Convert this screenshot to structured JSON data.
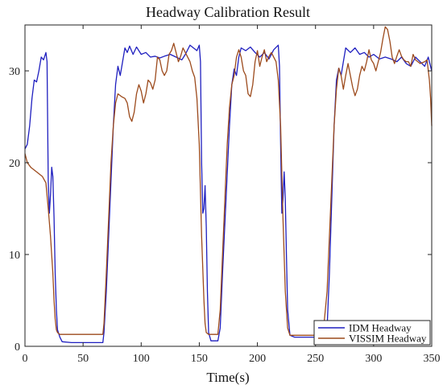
{
  "chart_data": {
    "type": "line",
    "title": "Headway Calibration Result",
    "xlabel": "Time(s)",
    "ylabel": "",
    "xlim": [
      0,
      350
    ],
    "ylim": [
      0,
      35
    ],
    "xticks": [
      0,
      50,
      100,
      150,
      200,
      250,
      300,
      350
    ],
    "yticks": [
      0,
      10,
      20,
      30
    ],
    "grid": false,
    "legend_position": "bottom-right",
    "series": [
      {
        "name": "IDM Headway",
        "color": "#1f1fbf",
        "points": [
          [
            0,
            21.5
          ],
          [
            2,
            22
          ],
          [
            4,
            24
          ],
          [
            6,
            27
          ],
          [
            8,
            29
          ],
          [
            10,
            28.8
          ],
          [
            12,
            30
          ],
          [
            14,
            31.5
          ],
          [
            16,
            31.2
          ],
          [
            18,
            32
          ],
          [
            19,
            31
          ],
          [
            20,
            18
          ],
          [
            21,
            14.5
          ],
          [
            22,
            16.5
          ],
          [
            23,
            19.5
          ],
          [
            24,
            18.5
          ],
          [
            25,
            14
          ],
          [
            26,
            8
          ],
          [
            27,
            4
          ],
          [
            28,
            1.8
          ],
          [
            30,
            1
          ],
          [
            32,
            0.5
          ],
          [
            40,
            0.4
          ],
          [
            50,
            0.4
          ],
          [
            60,
            0.4
          ],
          [
            67,
            0.4
          ],
          [
            68,
            1.5
          ],
          [
            70,
            6
          ],
          [
            72,
            12
          ],
          [
            74,
            18
          ],
          [
            76,
            24
          ],
          [
            78,
            28.5
          ],
          [
            80,
            30.5
          ],
          [
            82,
            29.5
          ],
          [
            84,
            31
          ],
          [
            86,
            32.5
          ],
          [
            88,
            32
          ],
          [
            90,
            32.7
          ],
          [
            93,
            31.8
          ],
          [
            96,
            32.6
          ],
          [
            100,
            31.8
          ],
          [
            104,
            32
          ],
          [
            108,
            31.5
          ],
          [
            112,
            31.6
          ],
          [
            116,
            31.4
          ],
          [
            120,
            31.6
          ],
          [
            125,
            31.8
          ],
          [
            130,
            31.5
          ],
          [
            135,
            31.2
          ],
          [
            138,
            31.8
          ],
          [
            142,
            32.8
          ],
          [
            145,
            32.5
          ],
          [
            148,
            32.2
          ],
          [
            150,
            32.8
          ],
          [
            151,
            31
          ],
          [
            152,
            20
          ],
          [
            153,
            14.5
          ],
          [
            154,
            15
          ],
          [
            155,
            17.5
          ],
          [
            156,
            13
          ],
          [
            157,
            6
          ],
          [
            158,
            1.5
          ],
          [
            160,
            0.6
          ],
          [
            164,
            0.6
          ],
          [
            166,
            0.6
          ],
          [
            168,
            2
          ],
          [
            170,
            8
          ],
          [
            173,
            16
          ],
          [
            176,
            24
          ],
          [
            178,
            28.5
          ],
          [
            180,
            30.2
          ],
          [
            182,
            29.5
          ],
          [
            184,
            31.5
          ],
          [
            186,
            32.5
          ],
          [
            190,
            32.2
          ],
          [
            194,
            32.6
          ],
          [
            198,
            32
          ],
          [
            202,
            31.5
          ],
          [
            206,
            32
          ],
          [
            210,
            31.3
          ],
          [
            214,
            32.3
          ],
          [
            218,
            32.8
          ],
          [
            219,
            30.5
          ],
          [
            220,
            22
          ],
          [
            221,
            14.5
          ],
          [
            222,
            16
          ],
          [
            223,
            19
          ],
          [
            224,
            16
          ],
          [
            225,
            10
          ],
          [
            226,
            4
          ],
          [
            228,
            1.2
          ],
          [
            232,
            1
          ],
          [
            240,
            1
          ],
          [
            250,
            1
          ],
          [
            258,
            1
          ],
          [
            260,
            2
          ],
          [
            262,
            8
          ],
          [
            264,
            16
          ],
          [
            266,
            24
          ],
          [
            268,
            29
          ],
          [
            270,
            30.3
          ],
          [
            272,
            29.5
          ],
          [
            274,
            31
          ],
          [
            276,
            32.5
          ],
          [
            280,
            32
          ],
          [
            284,
            32.5
          ],
          [
            288,
            31.8
          ],
          [
            292,
            32
          ],
          [
            296,
            31.5
          ],
          [
            300,
            31.8
          ],
          [
            305,
            31.3
          ],
          [
            310,
            31.5
          ],
          [
            315,
            31.3
          ],
          [
            320,
            31
          ],
          [
            324,
            31.5
          ],
          [
            328,
            30.8
          ],
          [
            332,
            30.5
          ],
          [
            336,
            31.5
          ],
          [
            340,
            31
          ],
          [
            344,
            30.5
          ],
          [
            347,
            31.5
          ],
          [
            348,
            31
          ],
          [
            350,
            30
          ]
        ]
      },
      {
        "name": "VISSIM Headway",
        "color": "#9c4a1c",
        "points": [
          [
            0,
            21
          ],
          [
            2,
            20
          ],
          [
            5,
            19.5
          ],
          [
            10,
            19
          ],
          [
            15,
            18.5
          ],
          [
            18,
            17.8
          ],
          [
            20,
            15
          ],
          [
            22,
            12
          ],
          [
            24,
            8
          ],
          [
            25,
            5
          ],
          [
            26,
            3
          ],
          [
            27,
            1.8
          ],
          [
            28,
            1.5
          ],
          [
            30,
            1.3
          ],
          [
            40,
            1.3
          ],
          [
            50,
            1.3
          ],
          [
            60,
            1.3
          ],
          [
            67,
            1.3
          ],
          [
            68,
            2.5
          ],
          [
            70,
            8
          ],
          [
            72,
            14
          ],
          [
            74,
            20
          ],
          [
            76,
            24
          ],
          [
            78,
            26.5
          ],
          [
            80,
            27.5
          ],
          [
            83,
            27.2
          ],
          [
            86,
            27
          ],
          [
            88,
            26.5
          ],
          [
            90,
            25
          ],
          [
            92,
            24.5
          ],
          [
            94,
            25.5
          ],
          [
            96,
            27.5
          ],
          [
            98,
            28.5
          ],
          [
            100,
            27.8
          ],
          [
            102,
            26.5
          ],
          [
            104,
            27.5
          ],
          [
            106,
            29
          ],
          [
            108,
            28.7
          ],
          [
            110,
            28
          ],
          [
            112,
            29
          ],
          [
            114,
            31.5
          ],
          [
            116,
            31.2
          ],
          [
            118,
            30
          ],
          [
            120,
            29.5
          ],
          [
            122,
            30
          ],
          [
            124,
            31.8
          ],
          [
            126,
            32.2
          ],
          [
            128,
            33
          ],
          [
            130,
            32
          ],
          [
            132,
            31
          ],
          [
            134,
            31.6
          ],
          [
            136,
            32.5
          ],
          [
            138,
            32
          ],
          [
            140,
            31.5
          ],
          [
            142,
            31
          ],
          [
            144,
            30
          ],
          [
            146,
            29.3
          ],
          [
            148,
            27
          ],
          [
            150,
            22
          ],
          [
            152,
            12
          ],
          [
            154,
            5
          ],
          [
            155,
            2.5
          ],
          [
            156,
            1.5
          ],
          [
            158,
            1.3
          ],
          [
            160,
            1.3
          ],
          [
            166,
            1.3
          ],
          [
            168,
            4
          ],
          [
            170,
            10
          ],
          [
            172,
            16
          ],
          [
            174,
            22
          ],
          [
            176,
            26
          ],
          [
            178,
            28.5
          ],
          [
            180,
            29.5
          ],
          [
            182,
            31.5
          ],
          [
            184,
            32.3
          ],
          [
            186,
            31.5
          ],
          [
            188,
            30
          ],
          [
            190,
            29.5
          ],
          [
            192,
            27.5
          ],
          [
            194,
            27.2
          ],
          [
            196,
            28.5
          ],
          [
            198,
            31
          ],
          [
            200,
            32.2
          ],
          [
            202,
            30.5
          ],
          [
            204,
            31.5
          ],
          [
            206,
            32.3
          ],
          [
            208,
            31
          ],
          [
            210,
            31.6
          ],
          [
            212,
            32
          ],
          [
            214,
            31.5
          ],
          [
            216,
            31
          ],
          [
            218,
            29
          ],
          [
            220,
            24
          ],
          [
            222,
            14
          ],
          [
            224,
            6
          ],
          [
            226,
            2
          ],
          [
            228,
            1.2
          ],
          [
            232,
            1.2
          ],
          [
            240,
            1.2
          ],
          [
            250,
            1.2
          ],
          [
            255,
            1.2
          ],
          [
            257,
            2
          ],
          [
            260,
            6
          ],
          [
            262,
            12
          ],
          [
            264,
            18
          ],
          [
            266,
            24
          ],
          [
            268,
            28
          ],
          [
            270,
            30.3
          ],
          [
            272,
            29.5
          ],
          [
            274,
            28
          ],
          [
            276,
            29.5
          ],
          [
            278,
            30.8
          ],
          [
            280,
            29.5
          ],
          [
            282,
            28.2
          ],
          [
            284,
            27.3
          ],
          [
            286,
            28
          ],
          [
            288,
            29.5
          ],
          [
            290,
            30.5
          ],
          [
            292,
            30
          ],
          [
            294,
            31
          ],
          [
            296,
            32.3
          ],
          [
            298,
            31.2
          ],
          [
            300,
            30.8
          ],
          [
            302,
            30
          ],
          [
            304,
            31
          ],
          [
            306,
            32
          ],
          [
            308,
            33.5
          ],
          [
            310,
            34.8
          ],
          [
            312,
            34.5
          ],
          [
            314,
            33.2
          ],
          [
            316,
            31.5
          ],
          [
            318,
            30.8
          ],
          [
            320,
            31.6
          ],
          [
            322,
            32.3
          ],
          [
            324,
            31.6
          ],
          [
            326,
            31.2
          ],
          [
            328,
            31
          ],
          [
            330,
            31
          ],
          [
            332,
            30.5
          ],
          [
            334,
            31.8
          ],
          [
            336,
            31.2
          ],
          [
            340,
            30.8
          ],
          [
            344,
            31
          ],
          [
            346,
            31.2
          ],
          [
            348,
            29
          ],
          [
            349,
            27
          ],
          [
            350,
            24
          ]
        ]
      }
    ]
  }
}
